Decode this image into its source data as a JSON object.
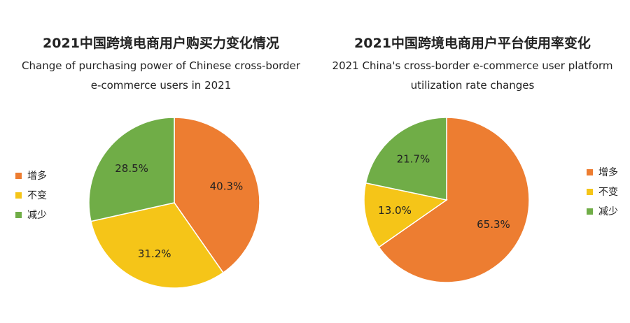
{
  "colors": {
    "increase": "#ED7D31",
    "unchanged": "#F5C518",
    "decrease": "#70AD47"
  },
  "chart_data": [
    {
      "type": "pie",
      "title": "2021中国跨境电商用户购买力变化情况",
      "subtitle_lines": [
        "Change of purchasing power of Chinese cross-border",
        "e-commerce users in 2021"
      ],
      "legend": [
        "增多",
        "不变",
        "减少"
      ],
      "legend_placement": "left",
      "slices": [
        {
          "label": "增多",
          "value": 40.3,
          "display": "40.3%",
          "color_key": "increase"
        },
        {
          "label": "不变",
          "value": 31.2,
          "display": "31.2%",
          "color_key": "unchanged"
        },
        {
          "label": "减少",
          "value": 28.5,
          "display": "28.5%",
          "color_key": "decrease"
        }
      ]
    },
    {
      "type": "pie",
      "title": "2021中国跨境电商用户平台使用率变化",
      "subtitle_lines": [
        "2021 China's cross-border e-commerce user platform",
        "utilization rate changes"
      ],
      "legend": [
        "增多",
        "不变",
        "减少"
      ],
      "legend_placement": "right",
      "slices": [
        {
          "label": "增多",
          "value": 65.3,
          "display": "65.3%",
          "color_key": "increase"
        },
        {
          "label": "不变",
          "value": 13.0,
          "display": "13.0%",
          "color_key": "unchanged"
        },
        {
          "label": "减少",
          "value": 21.7,
          "display": "21.7%",
          "color_key": "decrease"
        }
      ]
    }
  ]
}
